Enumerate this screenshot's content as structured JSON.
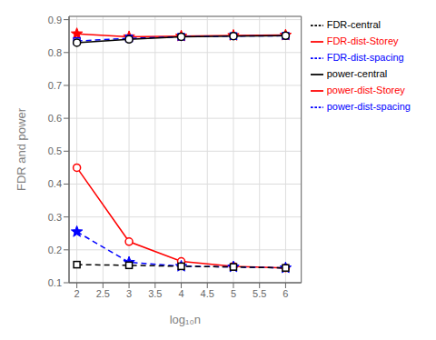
{
  "chart_data": {
    "type": "line",
    "x": [
      2,
      3,
      4,
      5,
      6
    ],
    "xlabel": "log₁₀n",
    "ylabel": "FDR and power",
    "xlim": [
      1.85,
      6.3
    ],
    "ylim": [
      0.1,
      0.91
    ],
    "xticks": [
      2,
      2.5,
      3,
      3.5,
      4,
      4.5,
      5,
      5.5,
      6
    ],
    "yticks": [
      0.1,
      0.2,
      0.3,
      0.4,
      0.5,
      0.6,
      0.7,
      0.8,
      0.9
    ],
    "grid": true,
    "legend": "upper right",
    "series": [
      {
        "name": "FDR-dist-Storey",
        "color": "#ff0000",
        "line_style": "solid",
        "marker": "circle",
        "values": [
          0.45,
          0.225,
          0.165,
          0.15,
          0.145
        ]
      },
      {
        "name": "FDR-dist-spacing",
        "color": "#0000ff",
        "line_style": "dashed",
        "marker": "star",
        "values": [
          0.255,
          0.162,
          0.15,
          0.148,
          0.145
        ]
      },
      {
        "name": "FDR-central",
        "color": "#000000",
        "line_style": "dashed",
        "marker": "square",
        "values": [
          0.155,
          0.153,
          0.15,
          0.148,
          0.145
        ]
      },
      {
        "name": "power-dist-Storey",
        "color": "#ff0000",
        "line_style": "solid",
        "marker": "star",
        "values": [
          0.857,
          0.848,
          0.85,
          0.852,
          0.853
        ]
      },
      {
        "name": "power-dist-spacing",
        "color": "#0000ff",
        "line_style": "dashed",
        "marker": "square",
        "values": [
          0.835,
          0.843,
          0.848,
          0.85,
          0.851
        ]
      },
      {
        "name": "power-central",
        "color": "#000000",
        "line_style": "solid",
        "marker": "circle",
        "values": [
          0.83,
          0.84,
          0.848,
          0.85,
          0.851
        ]
      }
    ]
  }
}
